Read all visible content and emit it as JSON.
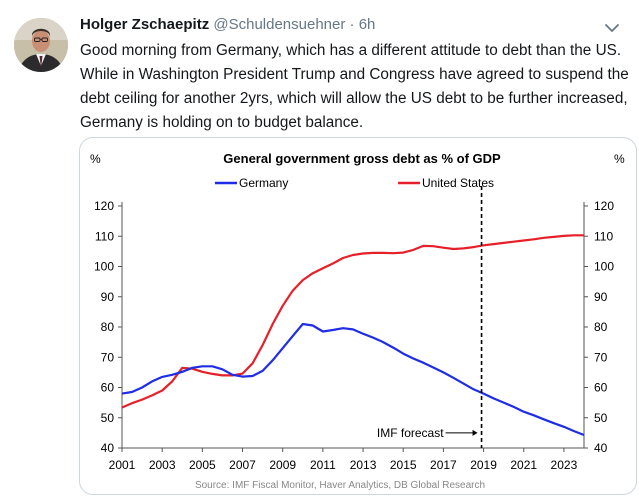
{
  "tweet": {
    "author_name": "Holger Zschaepitz",
    "author_handle": "@Schuldensuehner",
    "separator": "·",
    "timestamp": "6h",
    "text_lines": [
      "Good morning from Germany, which has a different attitude to debt than the US.",
      "While in Washington President Trump and Congress have agreed to suspend the",
      "debt ceiling for another 2yrs, which will allow the US debt to be further increased,",
      "Germany is holding on to budget balance."
    ]
  },
  "icons": {
    "avatar": "avatar-photo",
    "more": "chevron-down-icon"
  },
  "chart_data": {
    "type": "line",
    "title": "General government gross debt as % of GDP",
    "ylabel_left": "%",
    "ylabel_right": "%",
    "ylim": [
      40,
      120
    ],
    "yticks": [
      40,
      50,
      60,
      70,
      80,
      90,
      100,
      110,
      120
    ],
    "xlim": [
      2001,
      2024
    ],
    "xticks": [
      2001,
      2003,
      2005,
      2007,
      2009,
      2011,
      2013,
      2015,
      2017,
      2019,
      2021,
      2023
    ],
    "grid": false,
    "legend_position": "top-center",
    "source": "Source: IMF Fiscal Monitor, Haver Analytics, DB Global  Research",
    "annotation": {
      "text": "IMF forecast",
      "x": 2018.9
    },
    "series": [
      {
        "name": "Germany",
        "color": "#1f2de6",
        "x": [
          2001,
          2001.5,
          2002,
          2002.5,
          2003,
          2003.5,
          2004,
          2004.5,
          2005,
          2005.5,
          2006,
          2006.5,
          2007,
          2007.5,
          2008,
          2008.5,
          2009,
          2009.5,
          2010,
          2010.5,
          2011,
          2011.5,
          2012,
          2012.5,
          2013,
          2013.5,
          2014,
          2014.5,
          2015,
          2015.5,
          2016,
          2016.5,
          2017,
          2017.5,
          2018,
          2018.5,
          2019,
          2019.5,
          2020,
          2020.5,
          2021,
          2021.5,
          2022,
          2022.5,
          2023,
          2023.5,
          2024
        ],
        "values": [
          58,
          58.5,
          60,
          62,
          63.5,
          64.2,
          65.2,
          66.5,
          67,
          67,
          66,
          64.2,
          63.6,
          63.8,
          65.5,
          69,
          73,
          77,
          81,
          80.5,
          78.5,
          79,
          79.6,
          79.2,
          77.8,
          76.5,
          75,
          73.2,
          71.2,
          69.6,
          68.2,
          66.6,
          65,
          63.2,
          61.3,
          59.4,
          58,
          56.4,
          55,
          53.6,
          52,
          50.8,
          49.5,
          48.2,
          47,
          45.6,
          44.3
        ]
      },
      {
        "name": "United States",
        "color": "#e62028",
        "x": [
          2001,
          2001.5,
          2002,
          2002.5,
          2003,
          2003.5,
          2004,
          2004.5,
          2005,
          2005.5,
          2006,
          2006.5,
          2007,
          2007.5,
          2008,
          2008.5,
          2009,
          2009.5,
          2010,
          2010.5,
          2011,
          2011.5,
          2012,
          2012.5,
          2013,
          2013.5,
          2014,
          2014.5,
          2015,
          2015.5,
          2016,
          2016.5,
          2017,
          2017.5,
          2018,
          2018.5,
          2019,
          2019.5,
          2020,
          2020.5,
          2021,
          2021.5,
          2022,
          2022.5,
          2023,
          2023.5,
          2024
        ],
        "values": [
          53.4,
          54.8,
          56,
          57.4,
          59,
          62,
          66.5,
          66.2,
          65.2,
          64.5,
          64,
          64,
          64.6,
          68,
          74,
          81,
          87,
          92,
          95.5,
          97.8,
          99.4,
          101,
          102.8,
          103.8,
          104.3,
          104.5,
          104.5,
          104.4,
          104.6,
          105.5,
          106.8,
          106.7,
          106.2,
          105.8,
          106,
          106.4,
          107,
          107.4,
          107.8,
          108.2,
          108.6,
          109,
          109.5,
          109.8,
          110.1,
          110.3,
          110.3
        ]
      }
    ]
  }
}
